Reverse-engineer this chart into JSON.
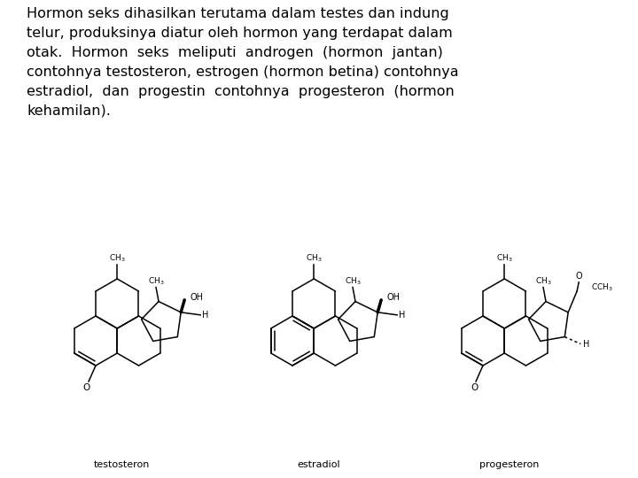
{
  "background_color": "#ffffff",
  "text_paragraph": "Hormon seks dihasilkan terutama dalam testes dan indung\ntelur, produksinya diatur oleh hormon yang terdapat dalam\notak.  Hormon  seks  meliputi  androgen  (hormon  jantan)\ncontohnya testosteron, estrogen (hormon betina) contohnya\nestradiol,  dan  progestin  contohnya  progesteron  (hormon\nkehamilan).",
  "label1": "testosteron",
  "label2": "estradiol",
  "label3": "progesteron",
  "text_color": "#000000",
  "line_color": "#000000",
  "text_fontsize": 11.5,
  "label_fontsize": 8.0,
  "fig_width": 7.2,
  "fig_height": 5.4
}
